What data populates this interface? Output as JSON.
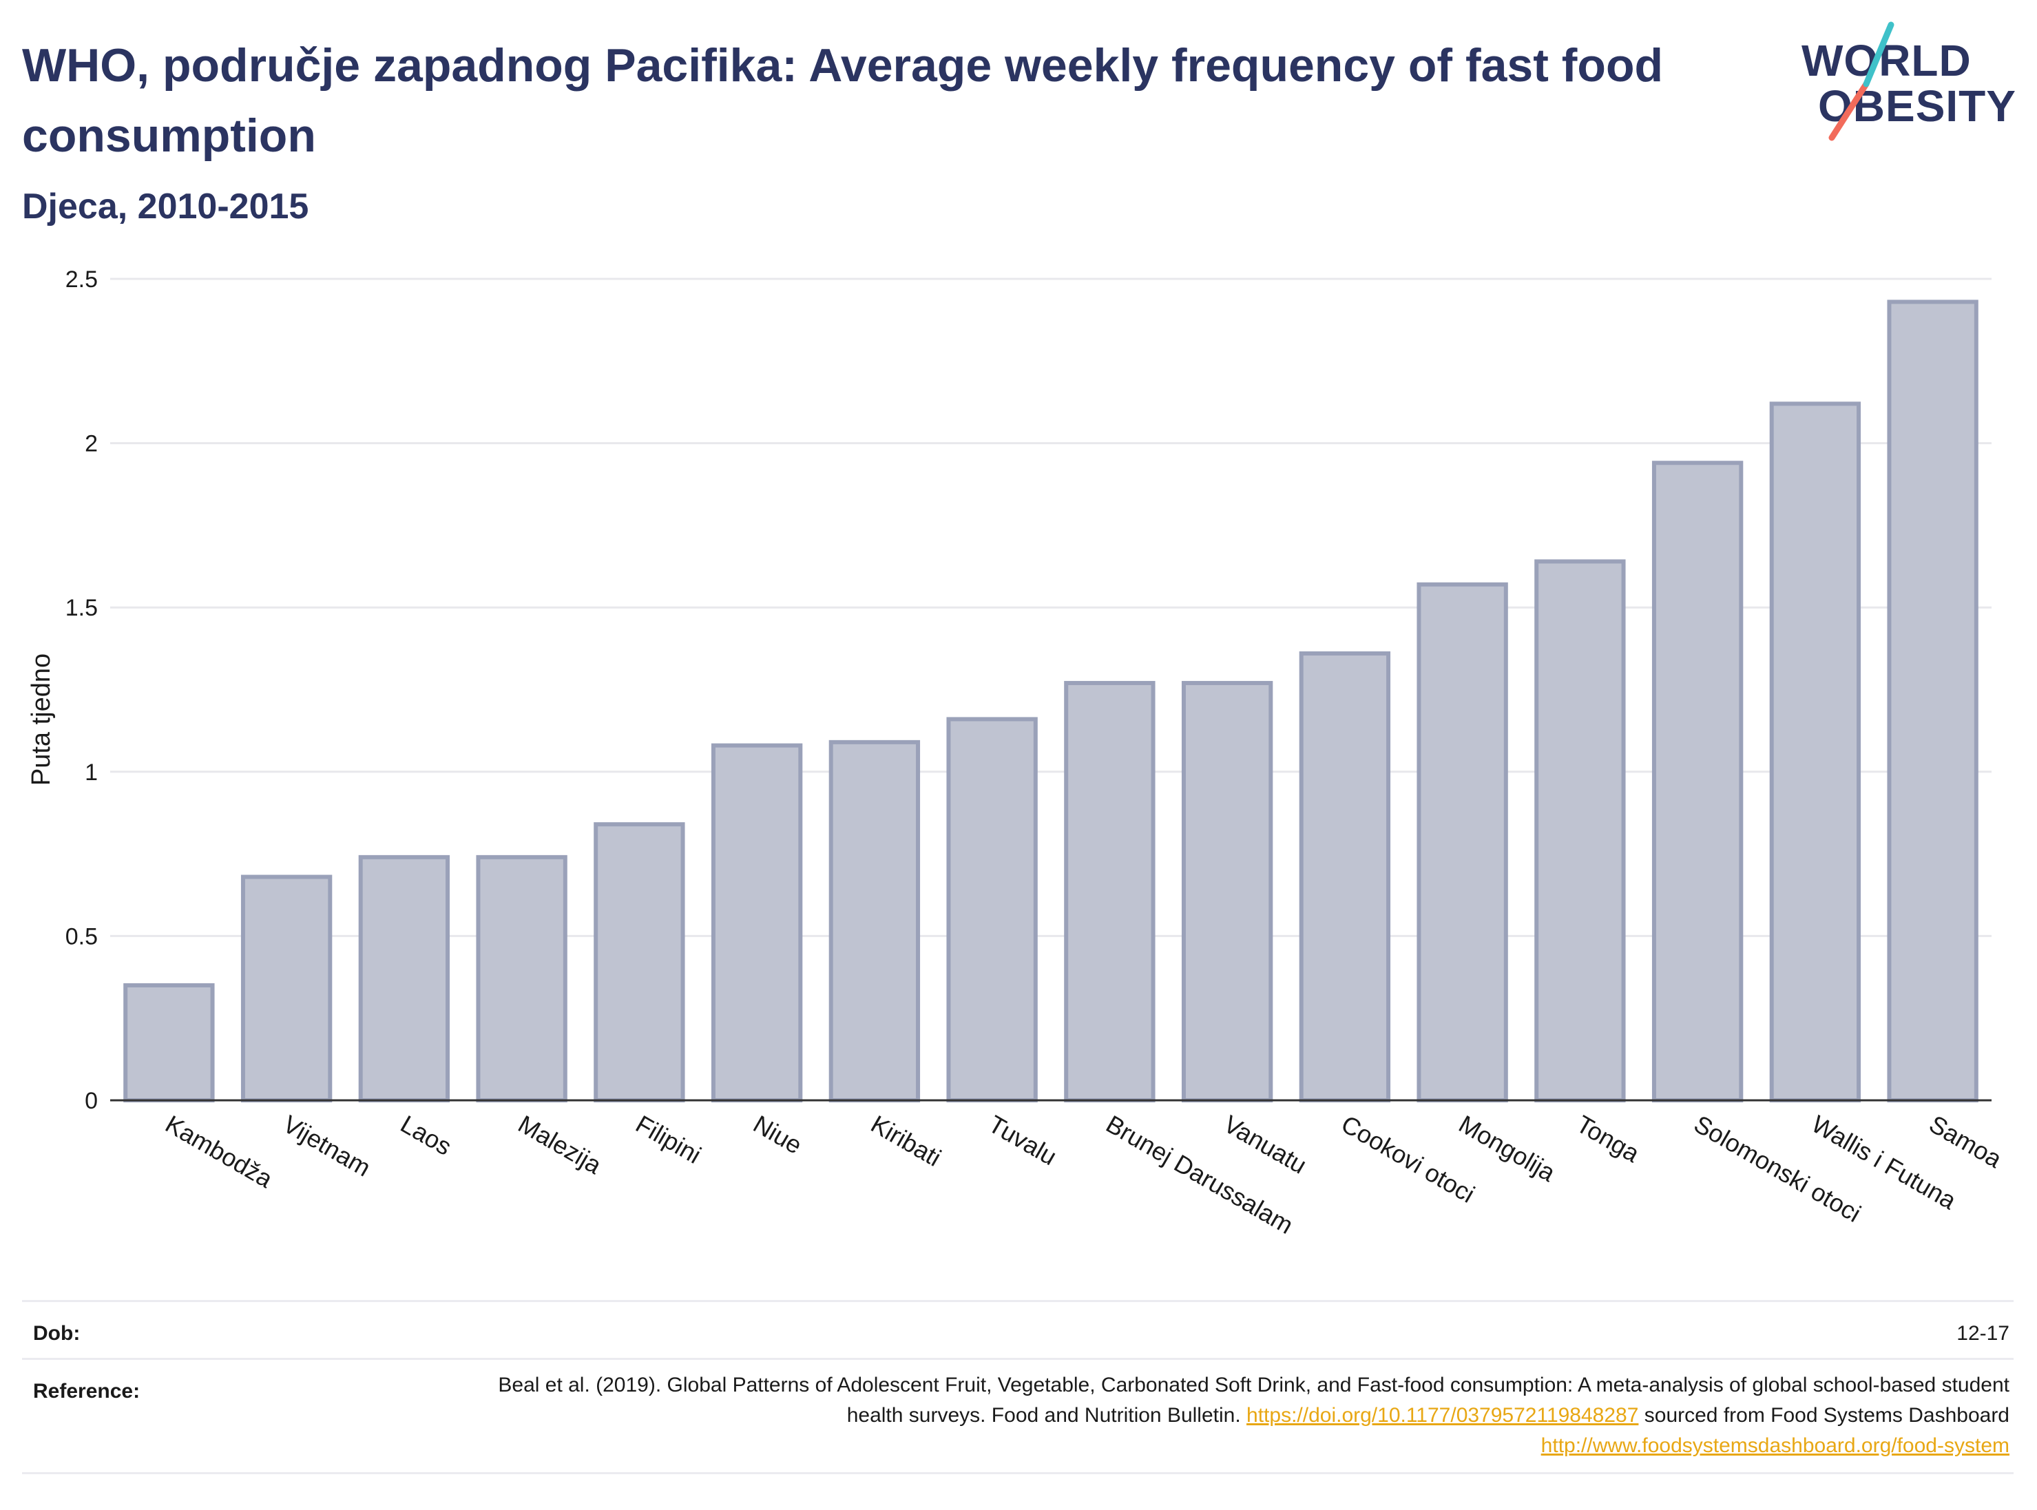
{
  "header": {
    "title": "WHO, područje zapadnog Pacifika: Average weekly frequency of fast food consumption",
    "subtitle": "Djeca, 2010-2015"
  },
  "logo": {
    "line1": "WORLD",
    "line2": "OBESITY",
    "accent_teal": "#3fc1c9",
    "accent_coral": "#f26b5b"
  },
  "chart_data": {
    "type": "bar",
    "ylabel": "Puta tjedno",
    "ylim": [
      0,
      2.5
    ],
    "yticks": [
      0,
      0.5,
      1,
      1.5,
      2,
      2.5
    ],
    "ytick_labels": [
      "0",
      "0.5",
      "1",
      "1.5",
      "2",
      "2.5"
    ],
    "grid": true,
    "bar_fill": "#bfc3d1",
    "bar_stroke": "#9aa1b9",
    "categories": [
      "Kambodža",
      "Vijetnam",
      "Laos",
      "Malezija",
      "Filipini",
      "Niue",
      "Kiribati",
      "Tuvalu",
      "Brunej Darussalam",
      "Vanuatu",
      "Cookovi otoci",
      "Mongolija",
      "Tonga",
      "Solomonski otoci",
      "Wallis i Futuna",
      "Samoa"
    ],
    "values": [
      0.35,
      0.68,
      0.74,
      0.74,
      0.84,
      1.08,
      1.09,
      1.16,
      1.27,
      1.27,
      1.36,
      1.57,
      1.64,
      1.94,
      2.12,
      2.43
    ]
  },
  "meta": {
    "age_label": "Dob:",
    "age_value": "12-17",
    "reference_label": "Reference:",
    "reference_text1": "Beal et al. (2019). Global Patterns of Adolescent Fruit, Vegetable, Carbonated Soft Drink, and Fast-food consumption: A meta-analysis of global school-based student health surveys. Food and Nutrition Bulletin.",
    "reference_link1": "https://doi.org/10.1177/0379572119848287",
    "reference_text2": "sourced from Food Systems Dashboard",
    "reference_link2": "http://www.foodsystemsdashboard.org/food-system",
    "link_color": "#e8a714"
  }
}
